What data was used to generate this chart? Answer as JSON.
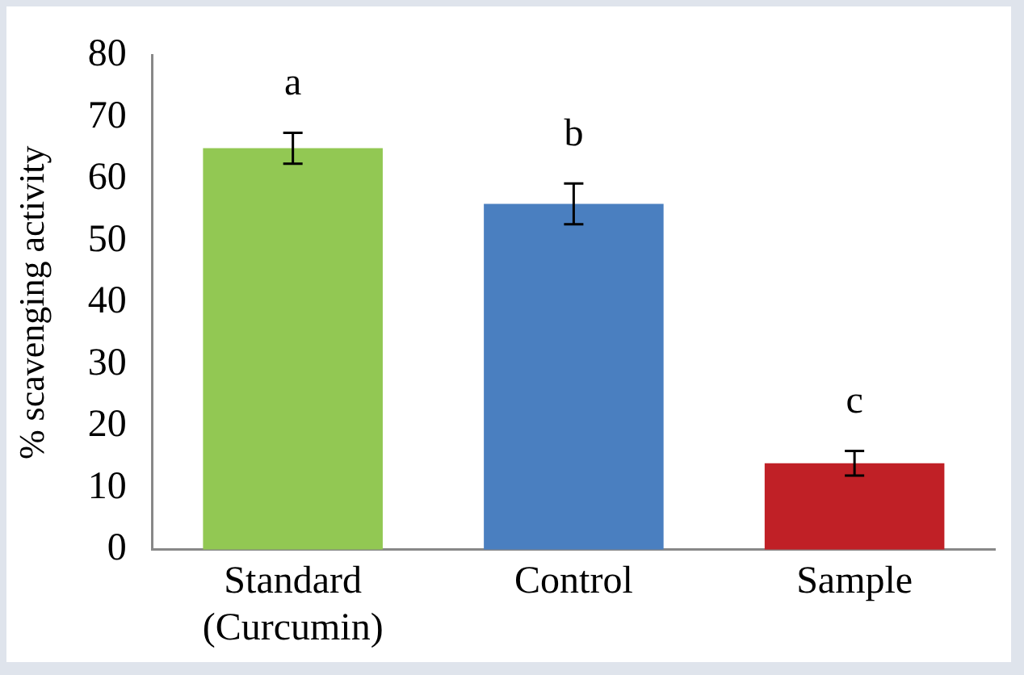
{
  "chart_data": {
    "type": "bar",
    "ylabel": "% scavenging activity",
    "categories": [
      "Standard (Curcumin)",
      "Control",
      "Sample"
    ],
    "values": [
      65,
      56,
      14
    ],
    "colors": [
      "#92c853",
      "#4a7fc0",
      "#c02026"
    ],
    "errors": [
      2.5,
      3.3,
      2
    ],
    "ylim": [
      0,
      80
    ],
    "yticks": [
      0,
      10,
      20,
      30,
      40,
      50,
      60,
      70,
      80
    ],
    "grid": false,
    "annotations": [
      "a",
      "b",
      "c"
    ]
  }
}
